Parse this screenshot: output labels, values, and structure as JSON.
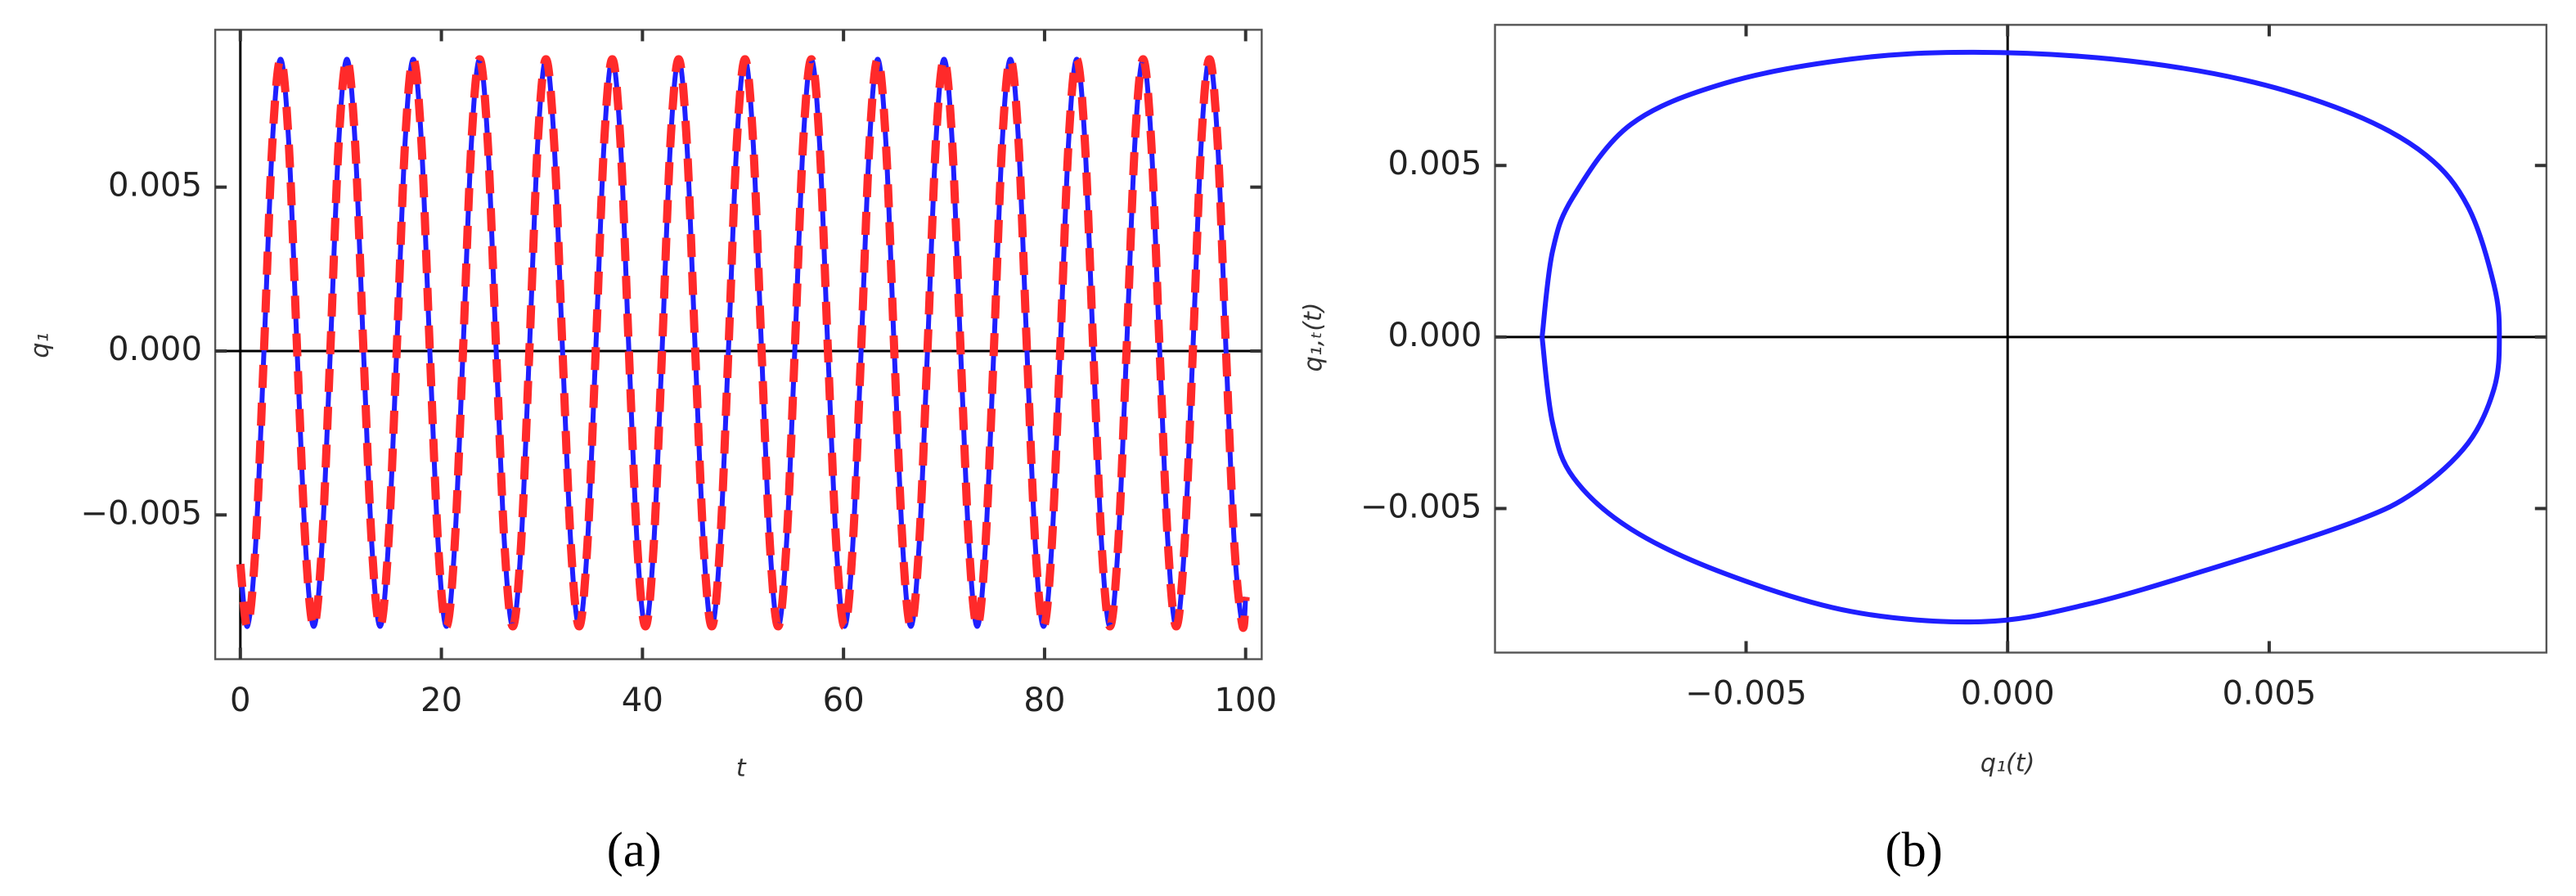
{
  "chart_data": [
    {
      "type": "line",
      "caption": "(a)",
      "x_label": "t",
      "y_label": "q₁",
      "xlim": [
        -2.5,
        101.6
      ],
      "ylim": [
        -0.0094,
        0.0098
      ],
      "xticks": [
        0,
        20,
        40,
        60,
        80,
        100
      ],
      "yticks": [
        {
          "value": -0.005,
          "label": "−0.005"
        },
        {
          "value": 0,
          "label": "0.000"
        },
        0.005
      ],
      "zero_axes": true,
      "x": [
        0,
        0.7,
        1.525,
        2.35,
        3.175,
        4,
        4.825,
        5.65,
        6.475,
        7.3,
        8.125,
        8.95,
        9.775,
        10.6,
        11.425,
        12.25,
        13.075,
        13.9,
        14.725,
        15.55,
        16.375,
        17.2,
        18.025,
        18.85,
        19.675,
        20.5,
        21.325,
        22.15,
        22.975,
        23.8,
        24.625,
        25.45,
        26.275,
        27.1,
        27.925,
        28.75,
        29.575,
        30.4,
        31.225,
        32.05,
        32.875,
        33.7,
        34.525,
        35.35,
        36.175,
        37,
        37.825,
        38.65,
        39.475,
        40.3,
        41.125,
        41.95,
        42.775,
        43.6,
        44.425,
        45.25,
        46.075,
        46.9,
        47.725,
        48.55,
        49.375,
        50.2,
        51.025,
        51.85,
        52.675,
        53.5,
        54.325,
        55.15,
        55.975,
        56.8,
        57.625,
        58.45,
        59.275,
        60.1,
        60.925,
        61.75,
        62.575,
        63.4,
        64.225,
        65.05,
        65.875,
        66.7,
        67.525,
        68.35,
        69.175,
        70,
        70.825,
        71.65,
        72.475,
        73.3,
        74.125,
        74.95,
        75.775,
        76.6,
        77.425,
        78.25,
        79.075,
        79.9,
        80.725,
        81.55,
        82.375,
        83.2,
        84.025,
        84.85,
        85.675,
        86.5,
        87.325,
        88.15,
        88.975,
        89.8,
        90.625,
        91.45,
        92.275,
        93.1,
        93.925,
        94.75,
        95.575,
        96.4,
        97.225,
        98.05,
        98.875,
        99.7,
        100
      ],
      "series": [
        {
          "color": "#1f1fff",
          "dash": false,
          "values": [
            -0.0065,
            -0.0084,
            -0.0059,
            0,
            0.0063,
            0.0089,
            0.0063,
            0,
            -0.0059,
            -0.0084,
            -0.0059,
            0,
            0.0063,
            0.0089,
            0.0063,
            0,
            -0.0059,
            -0.0084,
            -0.0059,
            0,
            0.0063,
            0.0089,
            0.0063,
            0,
            -0.0059,
            -0.0084,
            -0.0059,
            0,
            0.0063,
            0.0089,
            0.0063,
            0,
            -0.0059,
            -0.0084,
            -0.0059,
            0,
            0.0063,
            0.0089,
            0.0063,
            0,
            -0.0059,
            -0.0084,
            -0.0059,
            0,
            0.0063,
            0.0089,
            0.0063,
            0,
            -0.0059,
            -0.0084,
            -0.0059,
            0,
            0.0063,
            0.0089,
            0.0063,
            0,
            -0.0059,
            -0.0084,
            -0.0059,
            0,
            0.0063,
            0.0089,
            0.0063,
            0,
            -0.0059,
            -0.0084,
            -0.0059,
            0,
            0.0063,
            0.0089,
            0.0063,
            0,
            -0.0059,
            -0.0084,
            -0.0059,
            0,
            0.0063,
            0.0089,
            0.0063,
            0,
            -0.0059,
            -0.0084,
            -0.0059,
            0,
            0.0063,
            0.0089,
            0.0063,
            0,
            -0.0059,
            -0.0084,
            -0.0059,
            0,
            0.0063,
            0.0089,
            0.0063,
            0,
            -0.0059,
            -0.0084,
            -0.0059,
            0,
            0.0063,
            0.0089,
            0.0063,
            0,
            -0.0059,
            -0.0084,
            -0.0059,
            0,
            0.0063,
            0.0089,
            0.0063,
            0,
            -0.0059,
            -0.0084,
            -0.0059,
            0,
            0.0063,
            0.0089,
            0.0063,
            0,
            -0.0059,
            -0.0084,
            -0.0075
          ]
        },
        {
          "color": "#ff2a2a",
          "dash": true,
          "values": [
            -0.0065,
            -0.0084,
            -0.0059,
            0,
            0.0063,
            0.0089,
            0.0063,
            0,
            -0.0059,
            -0.0084,
            -0.0059,
            0,
            0.0063,
            0.0089,
            0.0063,
            0,
            -0.0059,
            -0.0084,
            -0.0059,
            0,
            0.0063,
            0.0089,
            0.0063,
            0,
            -0.0059,
            -0.0084,
            -0.0059,
            0,
            0.0063,
            0.0089,
            0.0063,
            0,
            -0.0059,
            -0.0084,
            -0.0059,
            0,
            0.0063,
            0.0089,
            0.0063,
            0,
            -0.0059,
            -0.0084,
            -0.0059,
            0,
            0.0063,
            0.0089,
            0.0063,
            0,
            -0.0059,
            -0.0084,
            -0.0059,
            0,
            0.0063,
            0.0089,
            0.0063,
            0,
            -0.0059,
            -0.0084,
            -0.0059,
            0,
            0.0063,
            0.0089,
            0.0063,
            0,
            -0.0059,
            -0.0084,
            -0.0059,
            0,
            0.0063,
            0.0089,
            0.0063,
            0,
            -0.0059,
            -0.0084,
            -0.0059,
            0,
            0.0063,
            0.0089,
            0.0063,
            0,
            -0.0059,
            -0.0084,
            -0.0059,
            0,
            0.0063,
            0.0089,
            0.0063,
            0,
            -0.0059,
            -0.0084,
            -0.0059,
            0,
            0.0063,
            0.0089,
            0.0063,
            0,
            -0.0059,
            -0.0084,
            -0.0059,
            0,
            0.0063,
            0.0089,
            0.0063,
            0,
            -0.0059,
            -0.0084,
            -0.0059,
            0,
            0.0063,
            0.0089,
            0.0063,
            0,
            -0.0059,
            -0.0084,
            -0.0059,
            0,
            0.0063,
            0.0089,
            0.0063,
            0,
            -0.0059,
            -0.0084,
            -0.0075
          ]
        }
      ]
    },
    {
      "type": "line",
      "caption": "(b)",
      "x_label": "q₁(t)",
      "y_label": "q₁,ₜ(t)",
      "xlim": [
        -0.0098,
        0.0103
      ],
      "ylim": [
        -0.0092,
        0.0091
      ],
      "xticks": [
        {
          "value": -0.005,
          "label": "−0.005"
        },
        {
          "value": 0,
          "label": "0.000"
        },
        0.005
      ],
      "yticks": [
        {
          "value": -0.005,
          "label": "−0.005"
        },
        {
          "value": 0,
          "label": "0.000"
        },
        0.005
      ],
      "zero_axes": true,
      "x": [
        -0.0089,
        -0.0087,
        -0.0083,
        -0.0072,
        -0.0054,
        -0.003,
        -0.0007,
        0.002,
        0.0045,
        0.0066,
        0.008,
        0.0088,
        0.0093,
        0.0094,
        0.0093,
        0.0088,
        0.0078,
        0.0066,
        0.004,
        0.0015,
        -0.0005,
        -0.003,
        -0.0054,
        -0.0072,
        -0.0083,
        -0.0087,
        -0.0089
      ],
      "series": [
        {
          "color": "#1f1fff",
          "dash": false,
          "values": [
            0,
            0.0025,
            0.0041,
            0.0062,
            0.0074,
            0.0081,
            0.0083,
            0.0081,
            0.0075,
            0.0065,
            0.0053,
            0.0038,
            0.0015,
            0,
            -0.0015,
            -0.0031,
            -0.0045,
            -0.0054,
            -0.0067,
            -0.0078,
            -0.0083,
            -0.008,
            -0.0069,
            -0.0056,
            -0.0041,
            -0.0025,
            0
          ]
        }
      ]
    }
  ]
}
